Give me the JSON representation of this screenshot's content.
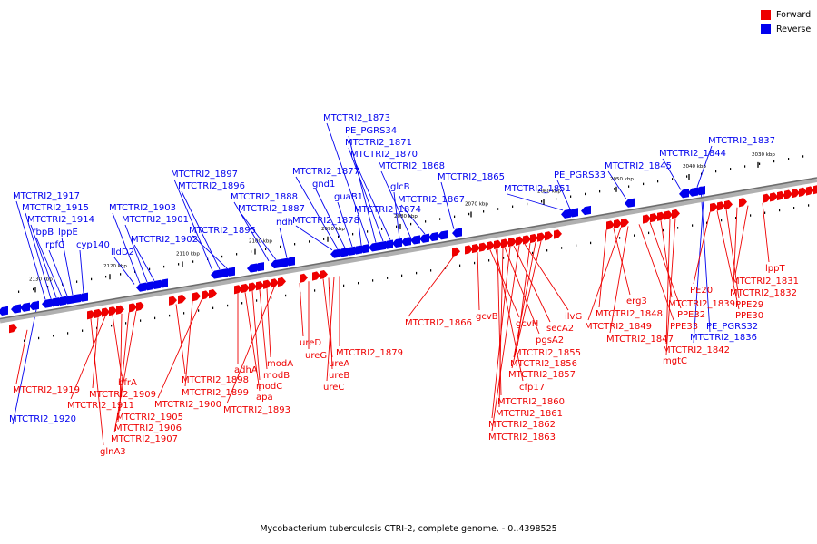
{
  "legend": {
    "forward_label": "Forward",
    "reverse_label": "Reverse",
    "forward_color": "#ee0000",
    "reverse_color": "#0000ee"
  },
  "footer": "Mycobacterium tuberculosis CTRI-2, complete genome. - 0..4398525",
  "ticks": [
    "2130 kbp",
    "2120 kbp",
    "2110 kbp",
    "2100 kbp",
    "2090 kbp",
    "2080 kbp",
    "2070 kbp",
    "2060 kbp",
    "2050 kbp",
    "2040 kbp",
    "2030 kbp"
  ],
  "reverse_genes": [
    "MTCTRI2_1917",
    "MTCTRI2_1915",
    "MTCTRI2_1914",
    "fbpB",
    "rpfC",
    "lppE",
    "cyp140",
    "MTCTRI2_1903",
    "MTCTRI2_1901",
    "MTCTRI2_1902",
    "lldD2",
    "MTCTRI2_1897",
    "MTCTRI2_1896",
    "MTCTRI2_1895",
    "MTCTRI2_1888",
    "MTCTRI2_1887",
    "ndh",
    "MTCTRI2_1878",
    "MTCTRI2_1877",
    "gnd1",
    "guaB1",
    "MTCTRI2_1874",
    "MTCTRI2_1873",
    "PE_PGRS34",
    "MTCTRI2_1871",
    "MTCTRI2_1870",
    "glcB",
    "MTCTRI2_1868",
    "MTCTRI2_1867",
    "MTCTRI2_1865",
    "MTCTRI2_1851",
    "PE_PGRS33",
    "MTCTRI2_1845",
    "MTCTRI2_1844",
    "MTCTRI2_1837",
    "MTCTRI2_1836",
    "PE_PGRS32",
    "MTCTRI2_1920"
  ],
  "forward_genes": [
    "MTCTRI2_1919",
    "MTCTRI2_1909",
    "MTCTRI2_1911",
    "bfrA",
    "MTCTRI2_1905",
    "MTCTRI2_1906",
    "MTCTRI2_1907",
    "glnA3",
    "MTCTRI2_1898",
    "MTCTRI2_1899",
    "MTCTRI2_1900",
    "adhA",
    "apa",
    "modC",
    "modB",
    "modA",
    "MTCTRI2_1893",
    "ureD",
    "ureG",
    "ureA",
    "ureB",
    "ureC",
    "MTCTRI2_1879",
    "MTCTRI2_1866",
    "gcvB",
    "gcvH",
    "cfp17",
    "pgsA2",
    "secA2",
    "ilvG",
    "MTCTRI2_1855",
    "MTCTRI2_1856",
    "MTCTRI2_1857",
    "MTCTRI2_1860",
    "MTCTRI2_1861",
    "MTCTRI2_1862",
    "MTCTRI2_1863",
    "erg3",
    "MTCTRI2_1848",
    "MTCTRI2_1849",
    "MTCTRI2_1847",
    "PPE33",
    "PPE32",
    "MTCTRI2_1839",
    "MTCTRI2_1842",
    "mgtC",
    "PE20",
    "PPE30",
    "PPE29",
    "MTCTRI2_1832",
    "MTCTRI2_1831",
    "lppT"
  ]
}
